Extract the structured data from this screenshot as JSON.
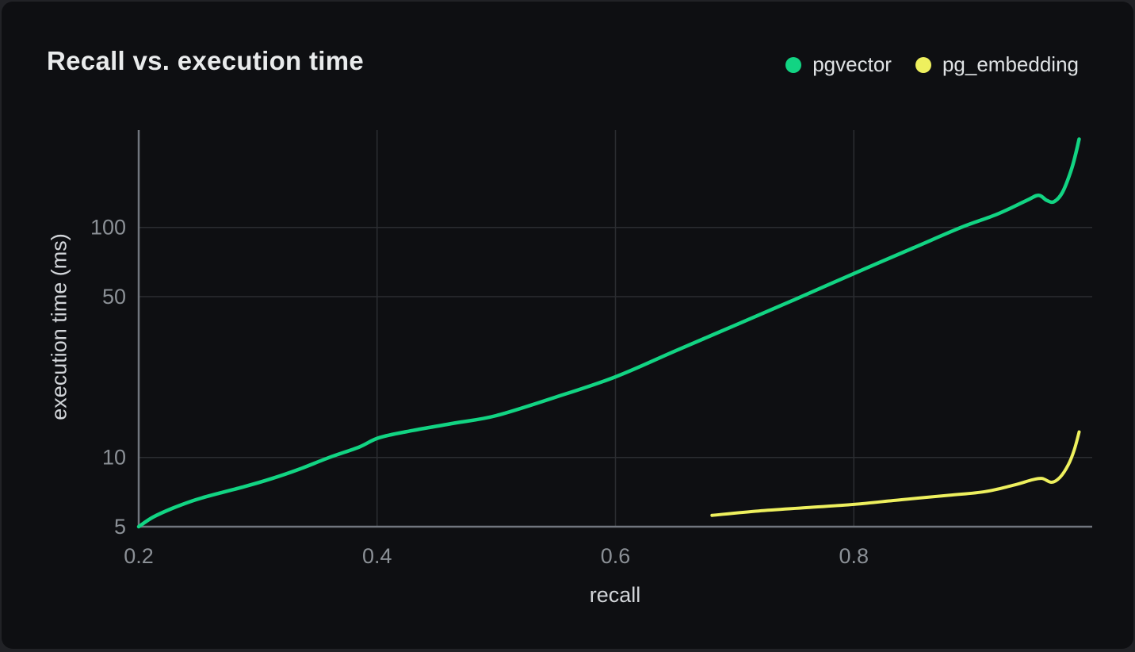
{
  "chart_data": {
    "type": "line",
    "title": "Recall vs. execution time",
    "xlabel": "recall",
    "ylabel": "execution time (ms)",
    "x_scale": "linear",
    "y_scale": "log",
    "xlim": [
      0.2,
      1.0
    ],
    "ylim": [
      5,
      265
    ],
    "x_ticks": [
      "0.2",
      "0.4",
      "0.6",
      "0.8"
    ],
    "y_ticks": [
      "5",
      "10",
      "50",
      "100"
    ],
    "grid": true,
    "legend_position": "top-right",
    "background_color": "#0e0f12",
    "gridline_color": "#2b2d31",
    "axis_color": "#71767e",
    "series": [
      {
        "name": "pgvector",
        "color": "#12d483",
        "points": [
          [
            0.2,
            5.0
          ],
          [
            0.212,
            5.5
          ],
          [
            0.228,
            6.0
          ],
          [
            0.248,
            6.55
          ],
          [
            0.268,
            7.0
          ],
          [
            0.29,
            7.5
          ],
          [
            0.312,
            8.1
          ],
          [
            0.335,
            8.9
          ],
          [
            0.36,
            10.0
          ],
          [
            0.385,
            11.1
          ],
          [
            0.402,
            12.2
          ],
          [
            0.43,
            13.1
          ],
          [
            0.465,
            14.1
          ],
          [
            0.5,
            15.2
          ],
          [
            0.55,
            18.3
          ],
          [
            0.6,
            22.4
          ],
          [
            0.65,
            29.0
          ],
          [
            0.7,
            37.5
          ],
          [
            0.75,
            48.5
          ],
          [
            0.8,
            63.0
          ],
          [
            0.85,
            81.5
          ],
          [
            0.89,
            100.0
          ],
          [
            0.92,
            114.0
          ],
          [
            0.945,
            131.0
          ],
          [
            0.955,
            138.0
          ],
          [
            0.962,
            131.0
          ],
          [
            0.968,
            129.5
          ],
          [
            0.975,
            142.0
          ],
          [
            0.982,
            175.0
          ],
          [
            0.986,
            207.0
          ],
          [
            0.989,
            242.0
          ]
        ]
      },
      {
        "name": "pg_embedding",
        "color": "#eef05e",
        "points": [
          [
            0.681,
            5.6
          ],
          [
            0.72,
            5.85
          ],
          [
            0.76,
            6.05
          ],
          [
            0.8,
            6.25
          ],
          [
            0.84,
            6.55
          ],
          [
            0.88,
            6.85
          ],
          [
            0.91,
            7.1
          ],
          [
            0.935,
            7.6
          ],
          [
            0.95,
            8.0
          ],
          [
            0.958,
            8.1
          ],
          [
            0.966,
            7.8
          ],
          [
            0.973,
            8.2
          ],
          [
            0.98,
            9.3
          ],
          [
            0.985,
            10.8
          ],
          [
            0.989,
            12.9
          ]
        ]
      }
    ]
  }
}
